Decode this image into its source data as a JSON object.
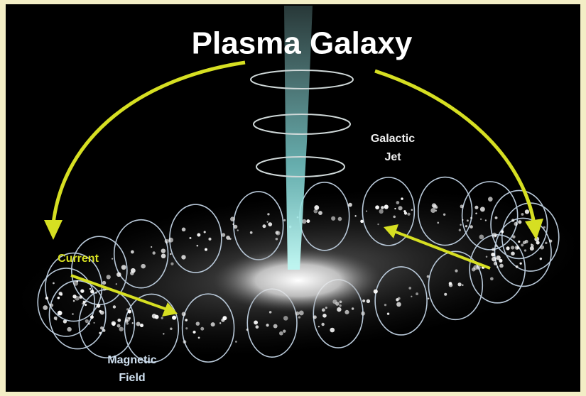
{
  "title": "Plasma Galaxy",
  "labels": {
    "jet": [
      "Galactic",
      "Jet"
    ],
    "current": "Current",
    "field": [
      "Magnetic",
      "Field"
    ]
  }
}
